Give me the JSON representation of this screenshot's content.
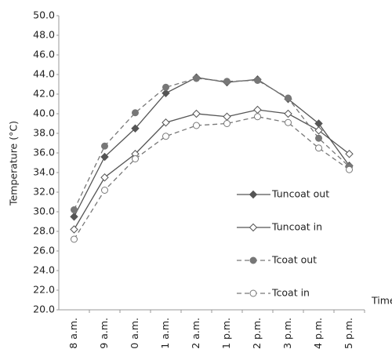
{
  "chart_data": {
    "type": "line",
    "y_label": "Temperature (°C)",
    "x_label": "Time",
    "categories": [
      "8 a.m.",
      "9 a.m.",
      "0 a.m.",
      "1 a.m.",
      "2 a.m.",
      "1 p.m.",
      "2 p.m.",
      "3 p.m.",
      "4 p.m.",
      "5 p.m."
    ],
    "series": [
      {
        "name": "Tuncoat out",
        "color": "#555555",
        "marker": "diamond",
        "filled": true,
        "dashed": false,
        "values": [
          29.5,
          35.6,
          38.5,
          42.1,
          43.7,
          43.2,
          43.5,
          41.5,
          39.0,
          34.7
        ]
      },
      {
        "name": "Tuncoat in",
        "color": "#555555",
        "marker": "diamond",
        "filled": false,
        "dashed": false,
        "values": [
          28.2,
          33.5,
          35.9,
          39.1,
          40.0,
          39.7,
          40.4,
          40.0,
          38.3,
          35.9
        ]
      },
      {
        "name": "Tcoat out",
        "color": "#777777",
        "marker": "circle",
        "filled": true,
        "dashed": true,
        "values": [
          30.2,
          36.7,
          40.1,
          42.7,
          43.6,
          43.3,
          43.4,
          41.6,
          37.5,
          34.6
        ]
      },
      {
        "name": "Tcoat in",
        "color": "#777777",
        "marker": "circle",
        "filled": false,
        "dashed": true,
        "values": [
          27.2,
          32.2,
          35.4,
          37.7,
          38.8,
          39.0,
          39.7,
          39.1,
          36.5,
          34.3
        ]
      }
    ],
    "ylim": [
      20,
      50
    ],
    "yticks": [
      {
        "value": 20,
        "label": "20.0"
      },
      {
        "value": 22,
        "label": "22.0"
      },
      {
        "value": 24,
        "label": "24.0"
      },
      {
        "value": 26,
        "label": "26.0"
      },
      {
        "value": 28,
        "label": "28.0"
      },
      {
        "value": 30,
        "label": "30.0"
      },
      {
        "value": 32,
        "label": "32.0"
      },
      {
        "value": 34,
        "label": "34.0"
      },
      {
        "value": 36,
        "label": "36.0"
      },
      {
        "value": 38,
        "label": "38.0"
      },
      {
        "value": 40,
        "label": "40.0"
      },
      {
        "value": 42,
        "label": "42.0"
      },
      {
        "value": 44,
        "label": "44.0"
      },
      {
        "value": 46,
        "label": "46.0"
      },
      {
        "value": 48,
        "label": "48.0"
      },
      {
        "value": 50,
        "label": "50.0"
      }
    ],
    "grid": false
  }
}
